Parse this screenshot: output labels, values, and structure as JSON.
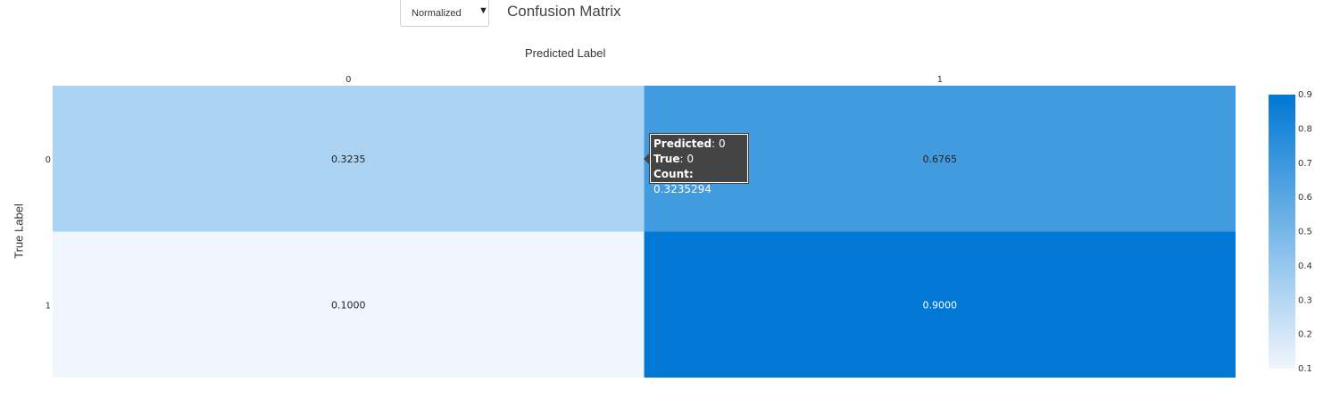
{
  "controls": {
    "mode_select": {
      "selected": "Normalized",
      "arrow_icon": "triangle-down-icon"
    }
  },
  "chart_data": {
    "type": "heatmap",
    "title": "Confusion Matrix",
    "xlabel": "Predicted Label",
    "ylabel": "True Label",
    "x_categories": [
      "0",
      "1"
    ],
    "y_categories": [
      "0",
      "1"
    ],
    "cells": [
      {
        "true": "0",
        "predicted": "0",
        "value": 0.3235,
        "label": "0.3235"
      },
      {
        "true": "0",
        "predicted": "1",
        "value": 0.6765,
        "label": "0.6765"
      },
      {
        "true": "1",
        "predicted": "0",
        "value": 0.1,
        "label": "0.1000"
      },
      {
        "true": "1",
        "predicted": "1",
        "value": 0.9,
        "label": "0.9000"
      }
    ],
    "colorscale": {
      "min": 0.1,
      "max": 0.9,
      "low_color": "#f0f6fd",
      "high_color": "#0078d4",
      "ticks": [
        "0.1",
        "0.2",
        "0.3",
        "0.4",
        "0.5",
        "0.6",
        "0.7",
        "0.8",
        "0.9"
      ]
    }
  },
  "tooltip": {
    "predicted_key": "Predicted",
    "predicted_value": "0",
    "true_key": "True",
    "true_value": "0",
    "count_key": "Count:",
    "count_value": "0.3235294"
  }
}
